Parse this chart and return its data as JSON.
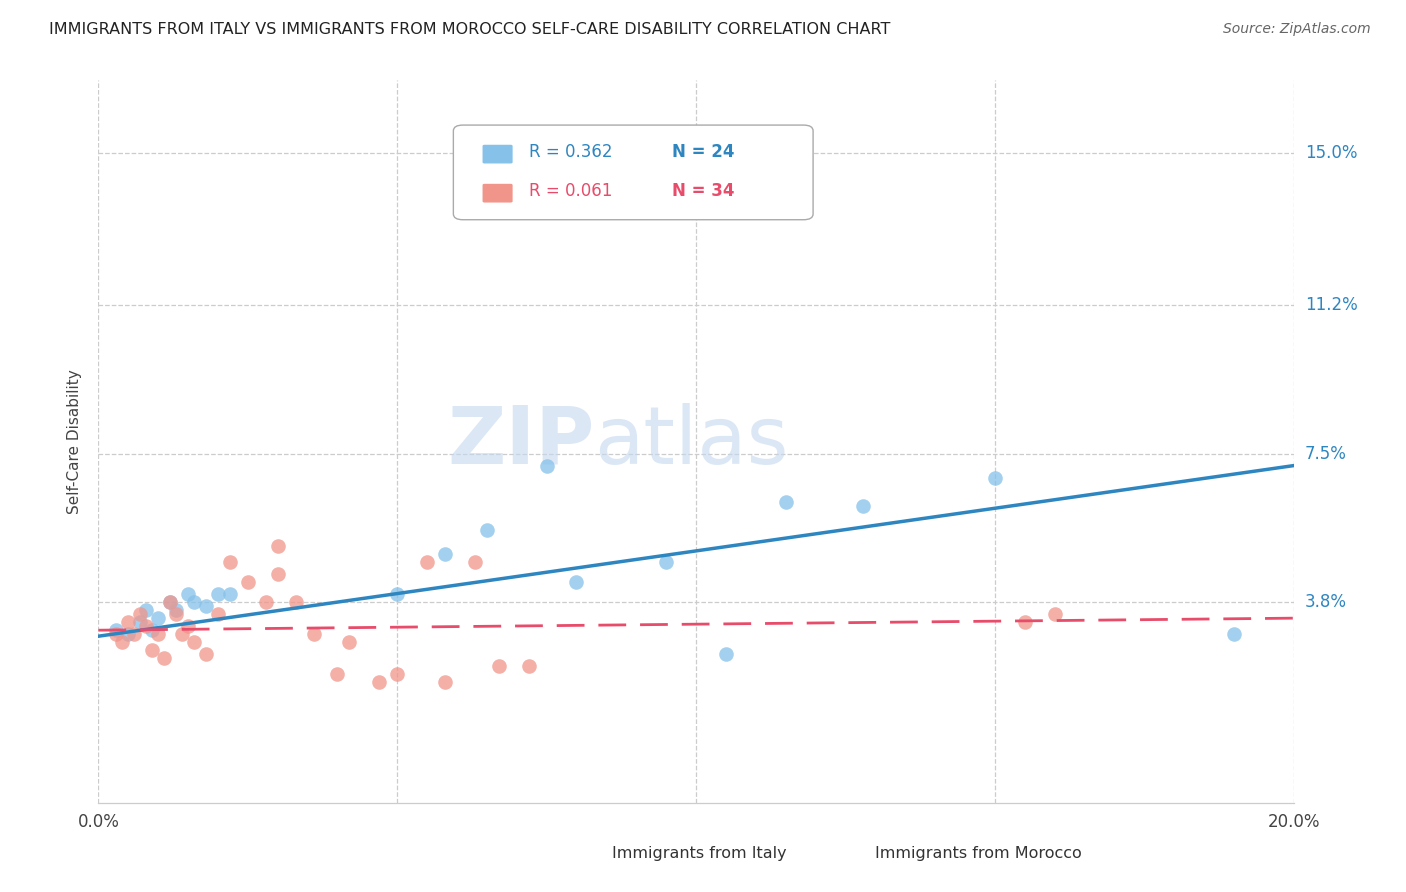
{
  "title": "IMMIGRANTS FROM ITALY VS IMMIGRANTS FROM MOROCCO SELF-CARE DISABILITY CORRELATION CHART",
  "source": "Source: ZipAtlas.com",
  "ylabel": "Self-Care Disability",
  "ytick_labels": [
    "3.8%",
    "7.5%",
    "11.2%",
    "15.0%"
  ],
  "ytick_values": [
    0.038,
    0.075,
    0.112,
    0.15
  ],
  "xlim": [
    0.0,
    0.2
  ],
  "ylim": [
    -0.012,
    0.168
  ],
  "legend_italy": "Immigrants from Italy",
  "legend_morocco": "Immigrants from Morocco",
  "italy_R": "R = 0.362",
  "italy_N": "N = 24",
  "morocco_R": "R = 0.061",
  "morocco_N": "N = 34",
  "italy_color": "#85C1E9",
  "morocco_color": "#F1948A",
  "italy_line_color": "#2E86C1",
  "morocco_line_color": "#E74C6A",
  "italy_scatter_x": [
    0.003,
    0.005,
    0.007,
    0.008,
    0.009,
    0.01,
    0.012,
    0.013,
    0.015,
    0.016,
    0.018,
    0.02,
    0.022,
    0.05,
    0.058,
    0.065,
    0.075,
    0.08,
    0.095,
    0.105,
    0.115,
    0.128,
    0.15,
    0.19
  ],
  "italy_scatter_y": [
    0.031,
    0.03,
    0.033,
    0.036,
    0.031,
    0.034,
    0.038,
    0.036,
    0.04,
    0.038,
    0.037,
    0.04,
    0.04,
    0.04,
    0.05,
    0.056,
    0.072,
    0.043,
    0.048,
    0.025,
    0.063,
    0.062,
    0.069,
    0.03
  ],
  "morocco_scatter_x": [
    0.003,
    0.004,
    0.005,
    0.006,
    0.007,
    0.008,
    0.009,
    0.01,
    0.011,
    0.012,
    0.013,
    0.014,
    0.015,
    0.016,
    0.018,
    0.02,
    0.022,
    0.025,
    0.028,
    0.03,
    0.03,
    0.033,
    0.036,
    0.04,
    0.042,
    0.047,
    0.05,
    0.055,
    0.058,
    0.063,
    0.067,
    0.072,
    0.155,
    0.16
  ],
  "morocco_scatter_y": [
    0.03,
    0.028,
    0.033,
    0.03,
    0.035,
    0.032,
    0.026,
    0.03,
    0.024,
    0.038,
    0.035,
    0.03,
    0.032,
    0.028,
    0.025,
    0.035,
    0.048,
    0.043,
    0.038,
    0.052,
    0.045,
    0.038,
    0.03,
    0.02,
    0.028,
    0.018,
    0.02,
    0.048,
    0.018,
    0.048,
    0.022,
    0.022,
    0.033,
    0.035
  ]
}
